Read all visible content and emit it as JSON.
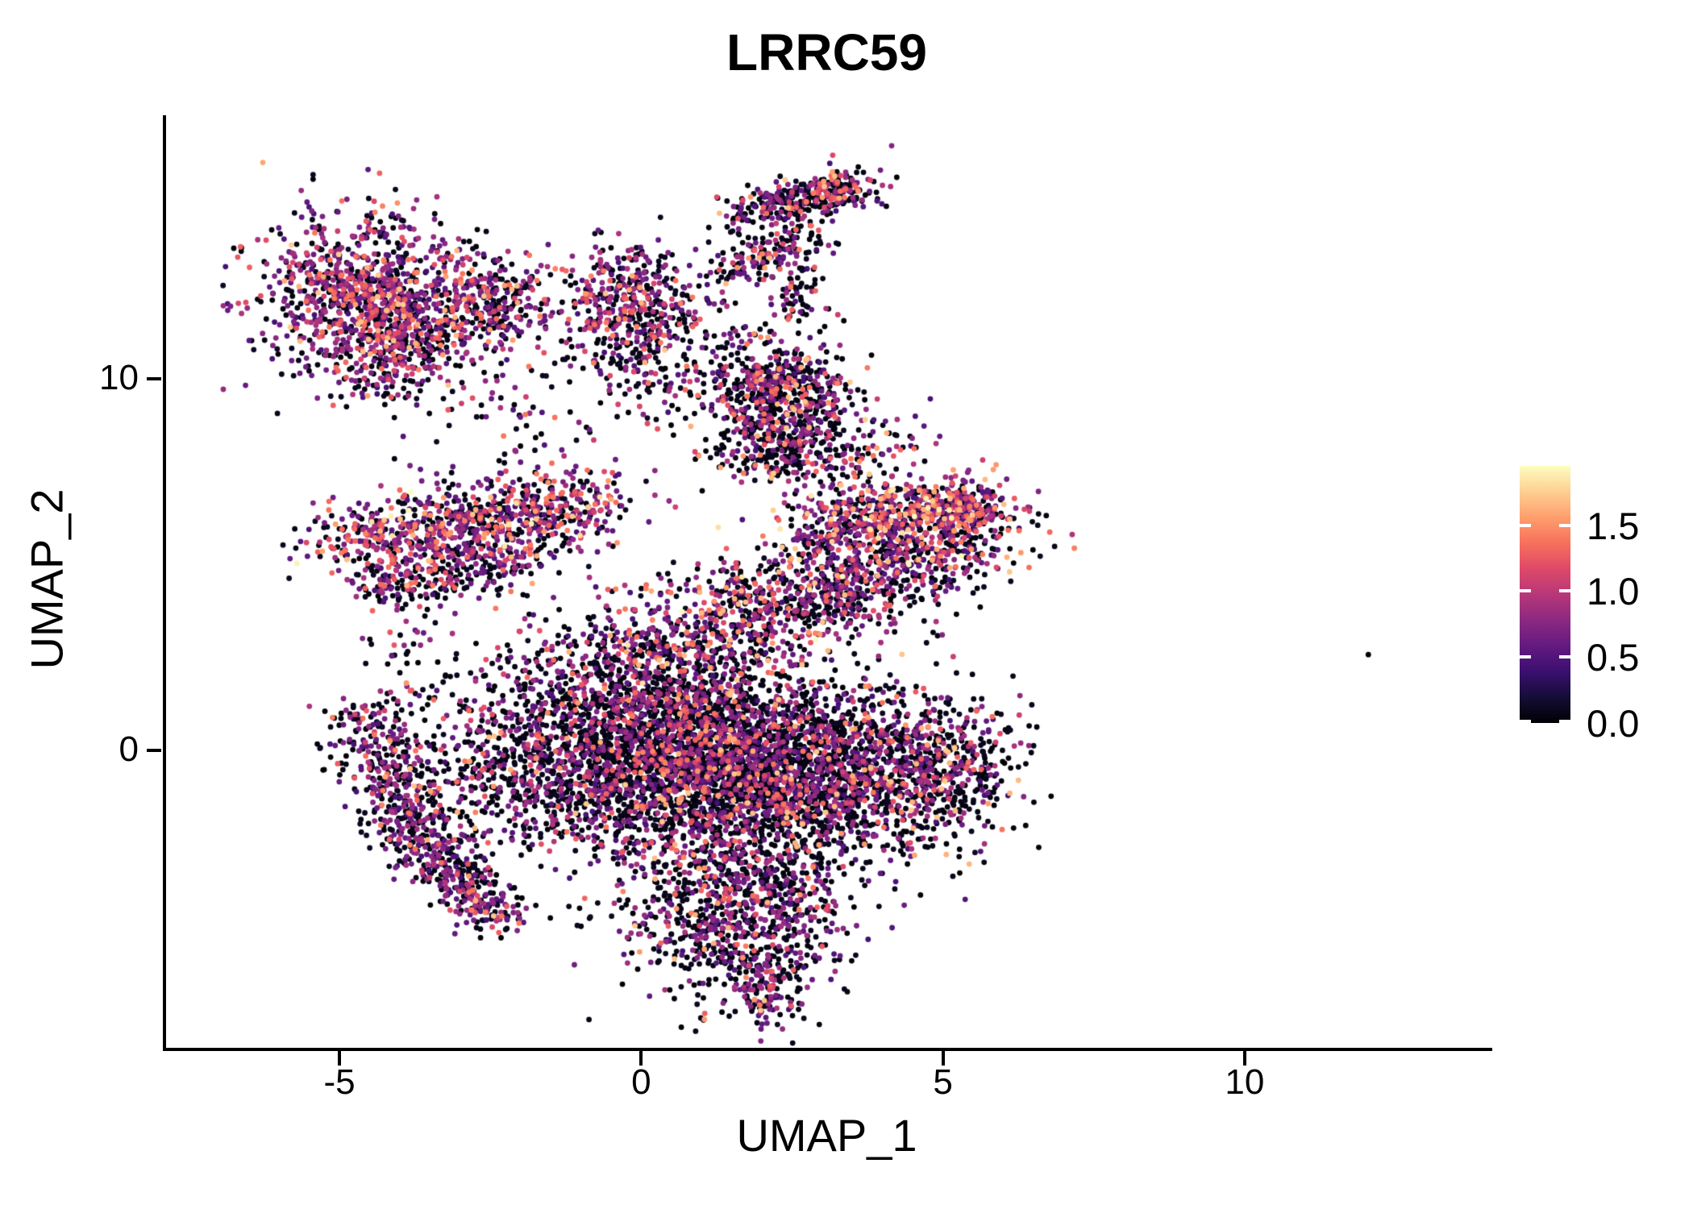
{
  "chart_data": {
    "type": "scatter",
    "title": "LRRC59",
    "xlabel": "UMAP_1",
    "ylabel": "UMAP_2",
    "xlim": [
      -7.9,
      14.05
    ],
    "ylim": [
      -8.05,
      17.1
    ],
    "x_ticks": [
      "-5",
      "0",
      "5",
      "10"
    ],
    "x_tick_values": [
      -5,
      0,
      5,
      10
    ],
    "y_ticks": [
      "0",
      "10"
    ],
    "y_tick_values": [
      0,
      10
    ],
    "grid": false,
    "legend_position": "right",
    "point_radius_px": 3.4,
    "colorbar": {
      "ticks": [
        0.0,
        0.5,
        1.0,
        1.5
      ],
      "tick_labels": [
        "0.0",
        "0.5",
        "1.0",
        "1.5"
      ],
      "vmin": 0,
      "vmax": 1.95,
      "colormap": "magma",
      "stops": [
        "#000004",
        "#140e36",
        "#3b0f70",
        "#641a80",
        "#8c2981",
        "#b73779",
        "#de4968",
        "#f7705c",
        "#fe9f6d",
        "#fecf92",
        "#fcfdbf"
      ]
    },
    "intensity_bins": {
      "black": [
        0.0,
        0.12
      ],
      "purple": [
        0.42,
        0.95
      ],
      "pink": [
        1.05,
        1.45
      ],
      "orange": [
        1.5,
        1.75
      ],
      "yellow": [
        1.82,
        1.95
      ]
    },
    "clusters": [
      {
        "name": "topleft-blob-main",
        "shape": "gauss",
        "cx": -4.6,
        "cy": 12.35,
        "sx": 0.85,
        "sy": 1.05,
        "n": 900,
        "mix": {
          "black": 0.36,
          "purple": 0.46,
          "pink": 0.14,
          "orange": 0.04
        }
      },
      {
        "name": "topleft-blob-sub",
        "shape": "gauss",
        "cx": -3.95,
        "cy": 10.95,
        "sx": 0.65,
        "sy": 0.75,
        "n": 380,
        "mix": {
          "black": 0.42,
          "purple": 0.42,
          "pink": 0.13,
          "orange": 0.03
        }
      },
      {
        "name": "bridge-cluster",
        "shape": "gauss",
        "cx": -2.5,
        "cy": 12.05,
        "sx": 0.45,
        "sy": 0.55,
        "n": 250,
        "mix": {
          "black": 0.45,
          "purple": 0.38,
          "pink": 0.13,
          "orange": 0.04
        }
      },
      {
        "name": "mid-top-cluster",
        "shape": "gauss",
        "cx": -0.15,
        "cy": 12.0,
        "sx": 0.62,
        "sy": 0.85,
        "n": 480,
        "mix": {
          "black": 0.46,
          "purple": 0.4,
          "pink": 0.11,
          "orange": 0.03
        }
      },
      {
        "name": "hook-main",
        "shape": "band",
        "x1": 1.55,
        "y1": 14.4,
        "x2": 3.6,
        "y2": 15.25,
        "s": 0.3,
        "n": 280,
        "mix": {
          "black": 0.5,
          "purple": 0.36,
          "pink": 0.11,
          "orange": 0.03
        }
      },
      {
        "name": "hook-clump",
        "shape": "gauss",
        "cx": 3.25,
        "cy": 15.05,
        "sx": 0.28,
        "sy": 0.25,
        "n": 90,
        "mix": {
          "black": 0.5,
          "purple": 0.36,
          "pink": 0.11,
          "orange": 0.03
        }
      },
      {
        "name": "hook-arm",
        "shape": "band",
        "x1": 1.4,
        "y1": 12.9,
        "x2": 2.9,
        "y2": 13.9,
        "s": 0.27,
        "n": 150,
        "mix": {
          "black": 0.52,
          "purple": 0.36,
          "pink": 0.1,
          "orange": 0.02
        }
      },
      {
        "name": "neck-connector",
        "shape": "band",
        "x1": 2.4,
        "y1": 11.6,
        "x2": 2.8,
        "y2": 13.0,
        "s": 0.25,
        "n": 60,
        "mix": {
          "black": 0.6,
          "purple": 0.3,
          "pink": 0.1
        }
      },
      {
        "name": "sparse-mid",
        "shape": "gauss",
        "cx": 0.3,
        "cy": 10.2,
        "sx": 0.85,
        "sy": 0.85,
        "n": 130,
        "mix": {
          "black": 0.6,
          "purple": 0.3,
          "pink": 0.08,
          "orange": 0.02
        }
      },
      {
        "name": "neck-main",
        "shape": "gauss",
        "cx": 2.3,
        "cy": 9.6,
        "sx": 0.6,
        "sy": 0.85,
        "n": 620,
        "mix": {
          "black": 0.58,
          "purple": 0.3,
          "pink": 0.09,
          "orange": 0.03
        }
      },
      {
        "name": "neck-lower",
        "shape": "gauss",
        "cx": 2.45,
        "cy": 8.0,
        "sx": 0.55,
        "sy": 0.5,
        "n": 220,
        "mix": {
          "black": 0.56,
          "purple": 0.32,
          "pink": 0.09,
          "orange": 0.03
        }
      },
      {
        "name": "right-of-neck",
        "shape": "gauss",
        "cx": 3.9,
        "cy": 7.9,
        "sx": 0.5,
        "sy": 0.8,
        "n": 80,
        "mix": {
          "black": 0.5,
          "purple": 0.35,
          "pink": 0.12,
          "orange": 0.03
        }
      },
      {
        "name": "sparse-left",
        "shape": "gauss",
        "cx": -2.1,
        "cy": 8.7,
        "sx": 0.6,
        "sy": 1.1,
        "n": 70,
        "mix": {
          "black": 0.55,
          "purple": 0.35,
          "pink": 0.1
        }
      },
      {
        "name": "left-arm",
        "shape": "band",
        "x1": -4.9,
        "y1": 5.5,
        "x2": -0.6,
        "y2": 6.6,
        "s": 0.55,
        "n": 880,
        "mix": {
          "black": 0.33,
          "purple": 0.44,
          "pink": 0.17,
          "orange": 0.05,
          "yellow": 0.01
        }
      },
      {
        "name": "left-arm-lower",
        "shape": "band",
        "x1": -4.5,
        "y1": 4.25,
        "x2": -1.6,
        "y2": 5.2,
        "s": 0.35,
        "n": 230,
        "mix": {
          "black": 0.45,
          "purple": 0.4,
          "pink": 0.12,
          "orange": 0.03
        }
      },
      {
        "name": "right-arm",
        "shape": "band",
        "x1": 2.8,
        "y1": 6.05,
        "x2": 5.55,
        "y2": 6.7,
        "s": 0.4,
        "n": 520,
        "mix": {
          "black": 0.33,
          "purple": 0.4,
          "pink": 0.18,
          "orange": 0.07,
          "yellow": 0.02
        }
      },
      {
        "name": "right-arm-tip",
        "shape": "gauss",
        "cx": 5.35,
        "cy": 6.45,
        "sx": 0.28,
        "sy": 0.3,
        "n": 85,
        "mix": {
          "black": 0.25,
          "purple": 0.55,
          "pink": 0.15,
          "orange": 0.05
        }
      },
      {
        "name": "mid-band",
        "shape": "band",
        "x1": -0.8,
        "y1": 2.2,
        "x2": 5.5,
        "y2": 5.9,
        "s": 0.78,
        "n": 1150,
        "mix": {
          "black": 0.44,
          "purple": 0.36,
          "pink": 0.14,
          "orange": 0.05,
          "yellow": 0.01
        }
      },
      {
        "name": "mid-band-upper",
        "shape": "band",
        "x1": 1.5,
        "y1": 3.2,
        "x2": 5.6,
        "y2": 5.6,
        "s": 0.5,
        "n": 330,
        "mix": {
          "black": 0.42,
          "purple": 0.38,
          "pink": 0.14,
          "orange": 0.05,
          "yellow": 0.01
        }
      },
      {
        "name": "left-crescent",
        "shape": "band",
        "x1": -4.55,
        "y1": 1.0,
        "x2": -3.6,
        "y2": -2.6,
        "s": 0.4,
        "n": 430,
        "mix": {
          "black": 0.48,
          "purple": 0.42,
          "pink": 0.08,
          "orange": 0.02
        }
      },
      {
        "name": "left-crescent-hook",
        "shape": "band",
        "x1": -3.6,
        "y1": -2.6,
        "x2": -2.3,
        "y2": -4.6,
        "s": 0.32,
        "n": 280,
        "mix": {
          "black": 0.48,
          "purple": 0.42,
          "pink": 0.08,
          "orange": 0.02
        }
      },
      {
        "name": "central-left",
        "shape": "gauss",
        "cx": -1.7,
        "cy": -0.2,
        "sx": 1.1,
        "sy": 1.4,
        "n": 850,
        "mix": {
          "black": 0.56,
          "purple": 0.34,
          "pink": 0.08,
          "orange": 0.02
        }
      },
      {
        "name": "central-core1",
        "shape": "gauss",
        "cx": 0.7,
        "cy": 0.1,
        "sx": 1.2,
        "sy": 1.4,
        "n": 2300,
        "mix": {
          "black": 0.64,
          "purple": 0.27,
          "pink": 0.07,
          "orange": 0.02
        }
      },
      {
        "name": "central-core2",
        "shape": "gauss",
        "cx": 2.9,
        "cy": -0.7,
        "sx": 1.3,
        "sy": 1.2,
        "n": 1900,
        "mix": {
          "black": 0.58,
          "purple": 0.31,
          "pink": 0.08,
          "orange": 0.03
        }
      },
      {
        "name": "right-bump",
        "shape": "gauss",
        "cx": 5.0,
        "cy": -0.4,
        "sx": 0.55,
        "sy": 0.85,
        "n": 330,
        "mix": {
          "black": 0.55,
          "purple": 0.32,
          "pink": 0.1,
          "orange": 0.03
        }
      },
      {
        "name": "bottom-tail",
        "shape": "gauss",
        "cx": 1.6,
        "cy": -4.2,
        "sx": 0.95,
        "sy": 1.2,
        "n": 950,
        "mix": {
          "black": 0.55,
          "purple": 0.36,
          "pink": 0.07,
          "orange": 0.02
        }
      },
      {
        "name": "bottom-tail-tip",
        "shape": "band",
        "x1": 1.8,
        "y1": -5.8,
        "x2": 2.15,
        "y2": -7.0,
        "s": 0.3,
        "n": 120,
        "mix": {
          "black": 0.55,
          "purple": 0.38,
          "pink": 0.06,
          "orange": 0.01
        }
      },
      {
        "name": "gap-fill",
        "shape": "gauss",
        "cx": -3.8,
        "cy": 3.0,
        "sx": 0.5,
        "sy": 0.7,
        "n": 45,
        "mix": {
          "black": 0.55,
          "purple": 0.4,
          "pink": 0.05
        }
      },
      {
        "name": "outlier-point",
        "shape": "point",
        "cx": 12.05,
        "cy": 2.58,
        "v": 0.0
      }
    ]
  }
}
